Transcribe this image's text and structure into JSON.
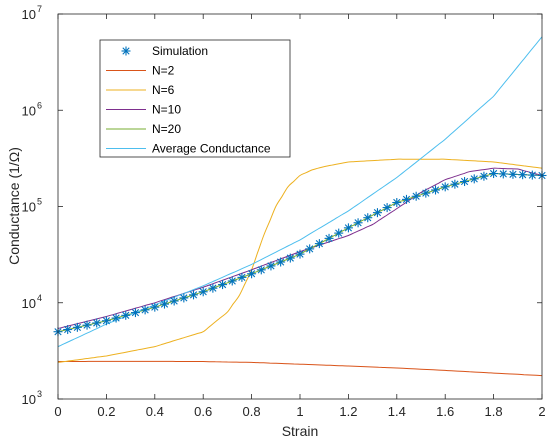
{
  "chart_data": {
    "type": "line",
    "xlabel": "Strain",
    "ylabel": "Conductance (1/Ω)",
    "xlim": [
      0,
      2
    ],
    "ylim": [
      1000,
      10000000
    ],
    "yscale": "log",
    "grid": false,
    "legend_position": "top-left",
    "x_ticks": [
      "0",
      "0.2",
      "0.4",
      "0.6",
      "0.8",
      "1",
      "1.2",
      "1.4",
      "1.6",
      "1.8",
      "2"
    ],
    "y_ticks": [
      {
        "base": "10",
        "exp": "3",
        "value": 1000
      },
      {
        "base": "10",
        "exp": "4",
        "value": 10000
      },
      {
        "base": "10",
        "exp": "5",
        "value": 100000
      },
      {
        "base": "10",
        "exp": "6",
        "value": 1000000
      },
      {
        "base": "10",
        "exp": "7",
        "value": 10000000
      }
    ],
    "series": [
      {
        "name": "Simulation",
        "style": "marker",
        "marker": "*",
        "color": "#0072BD",
        "x": [
          0,
          0.2,
          0.4,
          0.6,
          0.8,
          1.0,
          1.2,
          1.4,
          1.6,
          1.8,
          2.0
        ],
        "y": [
          5000,
          6500,
          9000,
          13000,
          20000,
          32000,
          60000,
          110000,
          160000,
          220000,
          210000
        ]
      },
      {
        "name": "N=2",
        "style": "line",
        "color": "#D95319",
        "x": [
          0,
          0.2,
          0.4,
          0.6,
          0.8,
          1.0,
          1.2,
          1.4,
          1.6,
          1.8,
          2.0
        ],
        "y": [
          2450,
          2460,
          2460,
          2450,
          2400,
          2300,
          2200,
          2100,
          1980,
          1860,
          1750
        ]
      },
      {
        "name": "N=6",
        "style": "line",
        "color": "#EDB120",
        "x": [
          0,
          0.2,
          0.4,
          0.6,
          0.7,
          0.75,
          0.8,
          0.85,
          0.9,
          0.95,
          1.0,
          1.05,
          1.1,
          1.2,
          1.4,
          1.6,
          1.8,
          2.0
        ],
        "y": [
          2400,
          2800,
          3500,
          5000,
          8000,
          12000,
          22000,
          50000,
          100000,
          160000,
          210000,
          240000,
          260000,
          290000,
          310000,
          310000,
          290000,
          250000
        ]
      },
      {
        "name": "N=10",
        "style": "line",
        "color": "#7E2F8E",
        "x": [
          0,
          0.2,
          0.4,
          0.6,
          0.8,
          1.0,
          1.2,
          1.3,
          1.4,
          1.5,
          1.6,
          1.7,
          1.8,
          1.9,
          2.0
        ],
        "y": [
          5400,
          7200,
          10000,
          14500,
          22000,
          34000,
          50000,
          65000,
          95000,
          140000,
          190000,
          230000,
          250000,
          245000,
          210000
        ]
      },
      {
        "name": "N=20",
        "style": "line",
        "color": "#77AC30",
        "x": [
          0,
          0.2,
          0.4,
          0.6,
          0.8,
          1.0,
          1.2,
          1.4,
          1.6,
          1.8,
          2.0
        ],
        "y": [
          5000,
          6500,
          9000,
          13000,
          20000,
          32000,
          60000,
          110000,
          160000,
          220000,
          210000
        ]
      },
      {
        "name": "Average Conductance",
        "style": "line",
        "color": "#4DBEEE",
        "x": [
          0,
          0.2,
          0.4,
          0.6,
          0.8,
          1.0,
          1.2,
          1.4,
          1.6,
          1.8,
          2.0
        ],
        "y": [
          3500,
          6000,
          9500,
          15000,
          25000,
          45000,
          90000,
          200000,
          500000,
          1400000,
          5800000
        ]
      }
    ]
  }
}
